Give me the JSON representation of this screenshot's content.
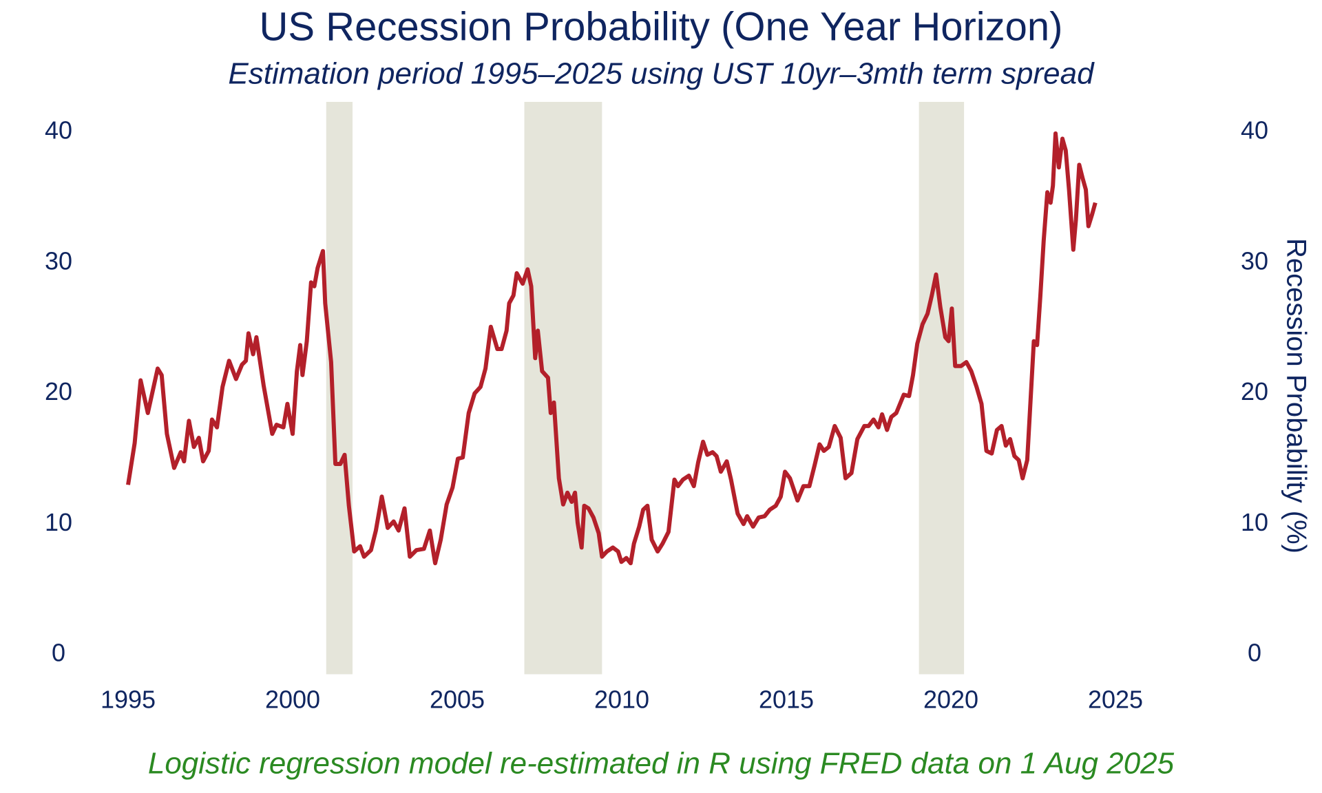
{
  "chart_data": {
    "type": "line",
    "title": "US Recession Probability (One Year Horizon)",
    "subtitle": "Estimation period 1995–2025 using UST 10yr–3mth term spread",
    "y_label": "Recession Probability (%)",
    "note": "Logistic regression model re-estimated in R using FRED data on 1 Aug 2025",
    "xlim": [
      1993.5,
      2029.5
    ],
    "xticks": [
      1995,
      2000,
      2005,
      2010,
      2015,
      2020,
      2025
    ],
    "ylim": [
      -1.5,
      41
    ],
    "yticks": [
      0,
      10,
      20,
      30,
      40
    ],
    "recessions": [
      [
        2001.02,
        2001.82
      ],
      [
        2007.04,
        2009.4
      ],
      [
        2019.03,
        2020.4
      ]
    ],
    "recession_color": "#e5e5da",
    "x": [
      1995.0,
      1995.2,
      1995.38,
      1995.6,
      1995.9,
      1996.02,
      1996.18,
      1996.4,
      1996.6,
      1996.7,
      1996.85,
      1997.0,
      1997.15,
      1997.28,
      1997.45,
      1997.55,
      1997.7,
      1997.87,
      1998.07,
      1998.28,
      1998.46,
      1998.58,
      1998.66,
      1998.8,
      1998.9,
      1999.12,
      1999.38,
      1999.51,
      1999.72,
      1999.84,
      2000.0,
      2000.13,
      2000.23,
      2000.3,
      2000.43,
      2000.56,
      2000.66,
      2000.76,
      2000.92,
      2000.99,
      2001.17,
      2001.3,
      2001.45,
      2001.58,
      2001.71,
      2001.87,
      2002.05,
      2002.17,
      2002.38,
      2002.53,
      2002.71,
      2002.89,
      2003.07,
      2003.22,
      2003.4,
      2003.56,
      2003.76,
      2003.99,
      2004.17,
      2004.33,
      2004.5,
      2004.68,
      2004.86,
      2005.02,
      2005.17,
      2005.35,
      2005.53,
      2005.71,
      2005.86,
      2006.02,
      2006.22,
      2006.35,
      2006.5,
      2006.58,
      2006.71,
      2006.81,
      2006.99,
      2007.14,
      2007.25,
      2007.37,
      2007.45,
      2007.58,
      2007.76,
      2007.84,
      2007.94,
      2008.09,
      2008.22,
      2008.35,
      2008.48,
      2008.58,
      2008.66,
      2008.78,
      2008.86,
      2008.99,
      2009.14,
      2009.3,
      2009.4,
      2009.55,
      2009.73,
      2009.89,
      2009.99,
      2010.14,
      2010.27,
      2010.37,
      2010.53,
      2010.65,
      2010.78,
      2010.91,
      2011.09,
      2011.24,
      2011.42,
      2011.6,
      2011.71,
      2011.86,
      2012.04,
      2012.19,
      2012.32,
      2012.47,
      2012.6,
      2012.76,
      2012.88,
      2013.01,
      2013.19,
      2013.32,
      2013.52,
      2013.7,
      2013.81,
      2013.99,
      2014.16,
      2014.34,
      2014.5,
      2014.68,
      2014.83,
      2014.96,
      2015.11,
      2015.34,
      2015.52,
      2015.7,
      2015.86,
      2016.01,
      2016.14,
      2016.29,
      2016.47,
      2016.65,
      2016.8,
      2016.98,
      2017.16,
      2017.37,
      2017.5,
      2017.65,
      2017.8,
      2017.91,
      2018.06,
      2018.19,
      2018.34,
      2018.57,
      2018.73,
      2018.85,
      2018.98,
      2019.14,
      2019.29,
      2019.42,
      2019.55,
      2019.68,
      2019.83,
      2019.93,
      2020.03,
      2020.13,
      2020.31,
      2020.47,
      2020.62,
      2020.78,
      2020.93,
      2021.08,
      2021.24,
      2021.4,
      2021.54,
      2021.67,
      2021.8,
      2021.93,
      2022.06,
      2022.18,
      2022.32,
      2022.4,
      2022.52,
      2022.62,
      2022.72,
      2022.82,
      2022.93,
      2023.03,
      2023.1,
      2023.18,
      2023.28,
      2023.39,
      2023.49,
      2023.59,
      2023.72,
      2023.8,
      2023.9,
      2024.0,
      2024.1,
      2024.18,
      2024.29,
      2024.39
    ],
    "series": [
      {
        "color": "#b3202a",
        "values": [
          13.0,
          16.2,
          21.0,
          18.5,
          21.9,
          21.4,
          16.9,
          14.3,
          15.5,
          14.8,
          17.9,
          15.9,
          16.6,
          14.8,
          15.6,
          18.0,
          17.4,
          20.5,
          22.5,
          21.1,
          22.2,
          22.5,
          24.6,
          23.0,
          24.3,
          20.6,
          16.9,
          17.6,
          17.4,
          19.2,
          16.9,
          21.7,
          23.7,
          21.4,
          24.0,
          28.5,
          28.2,
          29.6,
          30.9,
          26.9,
          22.4,
          14.6,
          14.6,
          15.3,
          11.4,
          7.9,
          8.3,
          7.5,
          8.0,
          9.5,
          12.1,
          9.7,
          10.2,
          9.5,
          11.2,
          7.5,
          8.0,
          8.1,
          9.5,
          7.0,
          8.8,
          11.5,
          12.8,
          15.0,
          15.1,
          18.5,
          20.0,
          20.5,
          21.9,
          25.1,
          23.4,
          23.4,
          24.8,
          26.9,
          27.5,
          29.2,
          28.4,
          29.5,
          28.2,
          22.7,
          24.8,
          21.7,
          21.2,
          18.5,
          19.3,
          13.5,
          11.5,
          12.4,
          11.7,
          12.4,
          10.1,
          8.2,
          11.4,
          11.2,
          10.5,
          9.3,
          7.5,
          7.9,
          8.2,
          7.9,
          7.1,
          7.4,
          7.0,
          8.5,
          9.8,
          11.1,
          11.4,
          8.8,
          7.9,
          8.5,
          9.4,
          13.4,
          12.9,
          13.4,
          13.7,
          12.9,
          14.7,
          16.3,
          15.3,
          15.5,
          15.2,
          14.0,
          14.8,
          13.4,
          10.8,
          10.0,
          10.6,
          9.8,
          10.5,
          10.6,
          11.1,
          11.4,
          12.1,
          14.0,
          13.5,
          11.8,
          12.9,
          12.9,
          14.5,
          16.1,
          15.6,
          15.9,
          17.5,
          16.6,
          13.5,
          13.9,
          16.5,
          17.5,
          17.5,
          18.0,
          17.4,
          18.4,
          17.2,
          18.2,
          18.5,
          19.9,
          19.8,
          21.4,
          23.8,
          25.3,
          26.1,
          27.5,
          29.1,
          26.6,
          24.3,
          24.0,
          26.5,
          22.1,
          22.1,
          22.4,
          21.7,
          20.5,
          19.2,
          15.6,
          15.4,
          17.2,
          17.5,
          16.0,
          16.5,
          15.2,
          14.9,
          13.5,
          14.9,
          18.5,
          24.0,
          23.7,
          27.5,
          31.7,
          35.4,
          34.6,
          35.9,
          39.9,
          37.3,
          39.5,
          38.6,
          35.6,
          31.0,
          33.3,
          37.5,
          36.5,
          35.6,
          32.8,
          33.7,
          34.6
        ]
      }
    ],
    "title_color": "#0f2560",
    "note_color": "#2b8a22"
  }
}
